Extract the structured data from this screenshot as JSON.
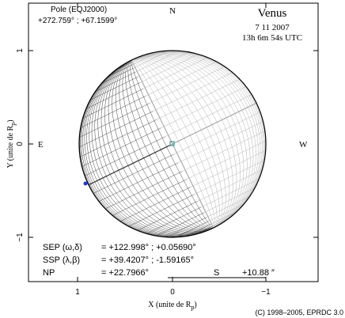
{
  "header": {
    "pole_label": "Pole (EQJ2000)",
    "pole_values": "+272.759° ; +67.1599°",
    "north": "N",
    "planet": "Venus",
    "date": "7 11 2007",
    "time": "13h 6m 54s UTC"
  },
  "sides": {
    "east": "E",
    "west": "W"
  },
  "axes": {
    "x_ticks": [
      "1",
      "0",
      "−1"
    ],
    "y_ticks": [
      "1",
      "0",
      "−1"
    ],
    "x_label": {
      "text": "X (unite de R",
      "sub": "p",
      "close": ")"
    },
    "y_label": {
      "text": "Y (unite de R",
      "sub": "p",
      "close": ")"
    }
  },
  "info": {
    "sep_label": "SEP (ω,δ)",
    "sep_value": "= +122.998° ; +0.05690°",
    "ssp_label": "SSP (λ,β)",
    "ssp_value": "= +39.4207° ; -1.59165°",
    "np_label": "NP",
    "np_value": "= +22.7966°",
    "scale_label": "S",
    "scale_value": "+10.88 ″"
  },
  "footer": "(C) 1998–2005, EPRDC 3.0"
}
